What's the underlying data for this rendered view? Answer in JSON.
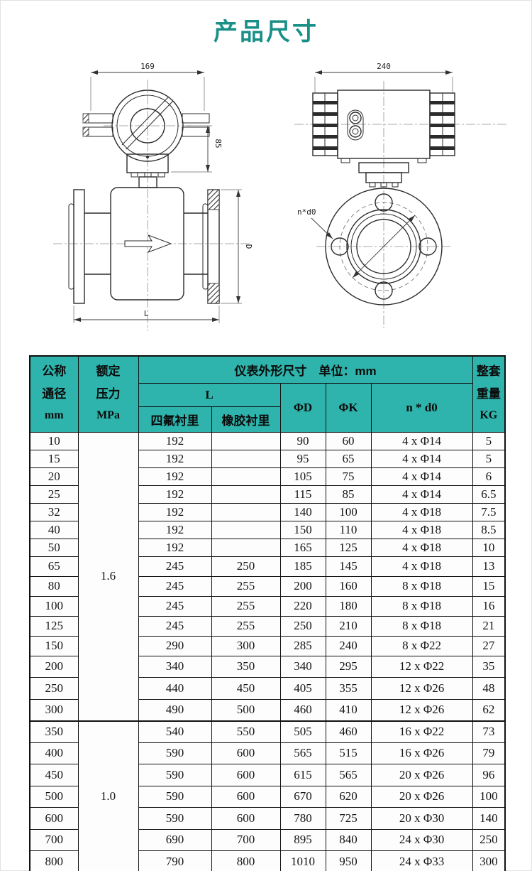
{
  "page": {
    "title": "产品尺寸"
  },
  "colors": {
    "title_teal": "#1a8f88",
    "header_bg_teal": "#2eb4ac",
    "table_line": "#101010"
  },
  "drawings": {
    "left": {
      "width_dim": "169",
      "height_dim": "85",
      "length_dim": "L",
      "diameter_dim": "D"
    },
    "right": {
      "width_dim": "240",
      "bolt_circle_label": "n*d0"
    }
  },
  "table": {
    "header": {
      "dn": [
        "公称",
        "通径",
        "mm"
      ],
      "pressure": [
        "额定",
        "压力",
        "MPa"
      ],
      "outline_group": "仪表外形尺寸　单位：mm",
      "l": "L",
      "ptfe": "四氟衬里",
      "rubber": "橡胶衬里",
      "phi_d": "ΦD",
      "phi_k": "ΦK",
      "n_d0": "n * d0",
      "weight": [
        "整套",
        "重量",
        "KG"
      ]
    },
    "pressure_groups": [
      {
        "label": "1.6",
        "rows": 15
      },
      {
        "label": "1.0",
        "rows": 7
      }
    ],
    "columns": [
      "dn",
      "pressure",
      "l_ptfe",
      "l_rubber",
      "phi_d",
      "phi_k",
      "n_d0",
      "weight"
    ],
    "rows": [
      [
        "10",
        "192",
        "",
        "90",
        "60",
        "4 x Φ14",
        "5"
      ],
      [
        "15",
        "192",
        "",
        "95",
        "65",
        "4 x Φ14",
        "5"
      ],
      [
        "20",
        "192",
        "",
        "105",
        "75",
        "4 x Φ14",
        "6"
      ],
      [
        "25",
        "192",
        "",
        "115",
        "85",
        "4 x Φ14",
        "6.5"
      ],
      [
        "32",
        "192",
        "",
        "140",
        "100",
        "4 x Φ18",
        "7.5"
      ],
      [
        "40",
        "192",
        "",
        "150",
        "110",
        "4 x Φ18",
        "8.5"
      ],
      [
        "50",
        "192",
        "",
        "165",
        "125",
        "4 x Φ18",
        "10"
      ],
      [
        "65",
        "245",
        "250",
        "185",
        "145",
        "4 x Φ18",
        "13"
      ],
      [
        "80",
        "245",
        "255",
        "200",
        "160",
        "8 x Φ18",
        "15"
      ],
      [
        "100",
        "245",
        "255",
        "220",
        "180",
        "8 x Φ18",
        "16"
      ],
      [
        "125",
        "245",
        "255",
        "250",
        "210",
        "8 x Φ18",
        "21"
      ],
      [
        "150",
        "290",
        "300",
        "285",
        "240",
        "8 x Φ22",
        "27"
      ],
      [
        "200",
        "340",
        "350",
        "340",
        "295",
        "12 x Φ22",
        "35"
      ],
      [
        "250",
        "440",
        "450",
        "405",
        "355",
        "12 x Φ26",
        "48"
      ],
      [
        "300",
        "490",
        "500",
        "460",
        "410",
        "12 x Φ26",
        "62"
      ],
      [
        "350",
        "540",
        "550",
        "505",
        "460",
        "16 x Φ22",
        "73"
      ],
      [
        "400",
        "590",
        "600",
        "565",
        "515",
        "16 x Φ26",
        "79"
      ],
      [
        "450",
        "590",
        "600",
        "615",
        "565",
        "20 x Φ26",
        "96"
      ],
      [
        "500",
        "590",
        "600",
        "670",
        "620",
        "20 x Φ26",
        "100"
      ],
      [
        "600",
        "590",
        "600",
        "780",
        "725",
        "20 x Φ30",
        "140"
      ],
      [
        "700",
        "690",
        "700",
        "895",
        "840",
        "24 x Φ30",
        "250"
      ],
      [
        "800",
        "790",
        "800",
        "1010",
        "950",
        "24 x Φ33",
        "300"
      ]
    ]
  }
}
